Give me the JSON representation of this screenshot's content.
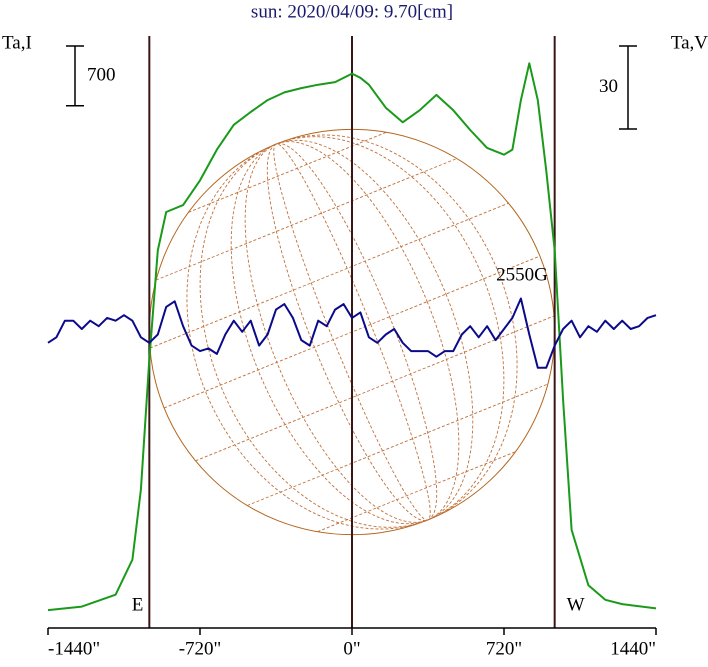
{
  "chart_data": {
    "type": "line",
    "title": "sun: 2020/04/09: 9.70[cm]",
    "ylabel": "Ta,I",
    "y2label": "Ta,V",
    "xlim": [
      -1440,
      1440
    ],
    "xticks": [
      {
        "value": -1440,
        "label": "-1440\""
      },
      {
        "value": -720,
        "label": "-720\""
      },
      {
        "value": 0,
        "label": "0\""
      },
      {
        "value": 720,
        "label": "720\""
      },
      {
        "value": 1440,
        "label": "1440\""
      }
    ],
    "ylim": [
      -200,
      6800
    ],
    "y2lim": [
      -104,
      112
    ],
    "scale_bars": [
      {
        "value": 700,
        "axis": "y"
      },
      {
        "value": 30,
        "axis": "y2"
      }
    ],
    "vlines": [
      {
        "x": -960,
        "label": "E"
      },
      {
        "x": 0
      },
      {
        "x": 960,
        "label": "W"
      }
    ],
    "disk_radius": 960,
    "annotation": "2550G",
    "series": [
      {
        "color": "#1a9a1a",
        "x": [
          -1440,
          -1280,
          -1120,
          -1040,
          -1000,
          -960,
          -920,
          -880,
          -800,
          -720,
          -640,
          -560,
          -480,
          -400,
          -320,
          -240,
          -160,
          -80,
          0,
          40,
          80,
          160,
          240,
          320,
          400,
          480,
          560,
          640,
          720,
          760,
          800,
          840,
          880,
          920,
          960,
          1000,
          1040,
          1120,
          1200,
          1280,
          1440
        ],
        "values": [
          10,
          50,
          190,
          600,
          1420,
          2940,
          4220,
          4670,
          4750,
          5040,
          5400,
          5690,
          5840,
          5980,
          6070,
          6120,
          6160,
          6190,
          6290,
          6240,
          6160,
          5890,
          5720,
          5860,
          6040,
          5860,
          5630,
          5420,
          5340,
          5400,
          5980,
          6410,
          5980,
          5160,
          4220,
          2470,
          950,
          300,
          130,
          80,
          30
        ]
      },
      {
        "color": "#0a0a8a",
        "axis": "y2",
        "x": [
          -1440,
          -1400,
          -1360,
          -1320,
          -1280,
          -1240,
          -1200,
          -1160,
          -1120,
          -1080,
          -1040,
          -1000,
          -960,
          -920,
          -880,
          -840,
          -800,
          -760,
          -720,
          -680,
          -640,
          -600,
          -560,
          -520,
          -480,
          -440,
          -400,
          -360,
          -320,
          -280,
          -240,
          -200,
          -160,
          -120,
          -80,
          -40,
          0,
          40,
          80,
          120,
          160,
          200,
          240,
          280,
          320,
          360,
          400,
          440,
          480,
          520,
          560,
          600,
          640,
          680,
          720,
          760,
          800,
          840,
          880,
          920,
          960,
          1000,
          1040,
          1080,
          1120,
          1160,
          1200,
          1240,
          1280,
          1320,
          1360,
          1400,
          1440
        ],
        "values": [
          -1,
          1,
          7,
          7,
          4,
          7,
          5,
          8,
          7,
          9,
          7,
          1,
          -1,
          2,
          12,
          14,
          5,
          -2,
          -4,
          -3,
          -5,
          2,
          7,
          3,
          7,
          -2,
          2,
          11,
          13,
          8,
          0,
          -2,
          7,
          5,
          11,
          13,
          8,
          10,
          1,
          -1,
          2,
          4,
          -1,
          -4,
          -4,
          -4,
          -6,
          -4,
          -4,
          2,
          5,
          1,
          5,
          0,
          4,
          8,
          15,
          2,
          -10,
          -10,
          -2,
          4,
          7,
          1,
          5,
          3,
          7,
          4,
          7,
          4,
          5,
          8,
          9
        ]
      }
    ]
  }
}
